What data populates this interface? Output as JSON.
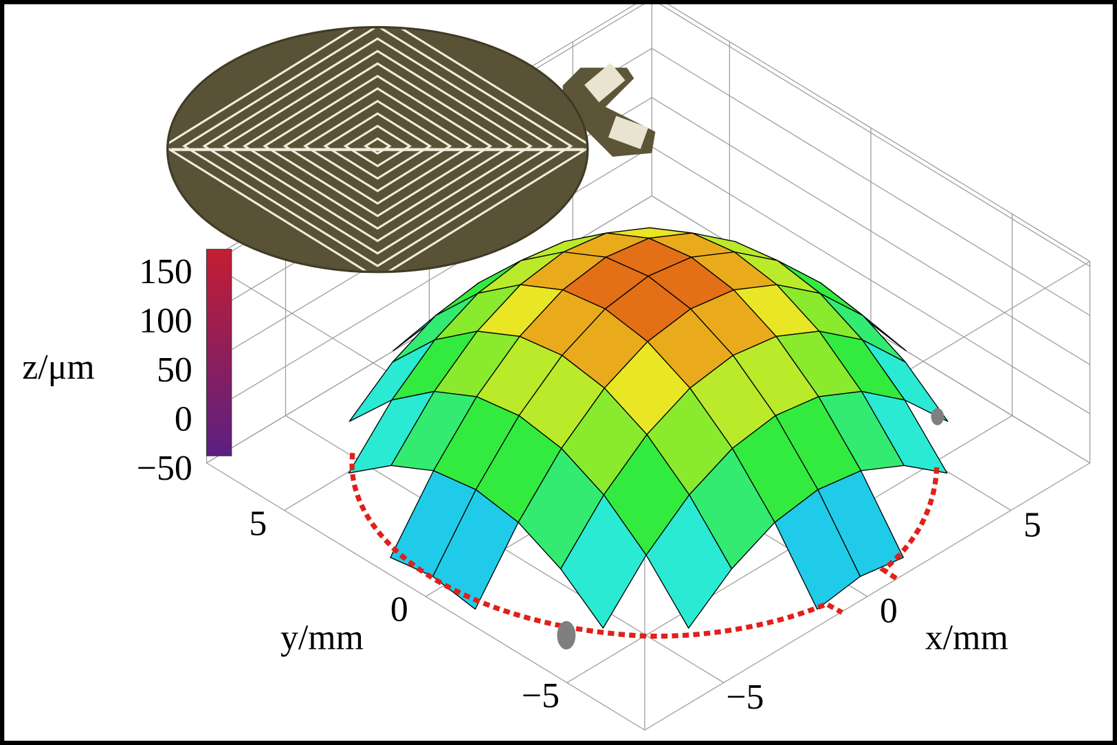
{
  "chart_data": {
    "type": "surface",
    "x": [
      -7.5,
      -6,
      -4.5,
      -3,
      -1.5,
      0,
      1.5,
      3,
      4.5,
      6,
      7.5
    ],
    "y": [
      -7.5,
      -6,
      -4.5,
      -3,
      -1.5,
      0,
      1.5,
      3,
      4.5,
      6,
      7.5
    ],
    "z": [
      [
        null,
        null,
        null,
        null,
        -41,
        -34,
        -41,
        null,
        null,
        null,
        null
      ],
      [
        null,
        null,
        -34,
        0,
        21,
        28,
        21,
        0,
        -34,
        null,
        null
      ],
      [
        null,
        -34,
        14,
        49,
        70,
        77,
        70,
        49,
        14,
        -34,
        null
      ],
      [
        null,
        0,
        49,
        84,
        105,
        112,
        105,
        84,
        49,
        0,
        null
      ],
      [
        -41,
        21,
        70,
        105,
        126,
        133,
        126,
        105,
        70,
        21,
        -41
      ],
      [
        -34,
        28,
        77,
        112,
        133,
        140,
        133,
        112,
        77,
        28,
        -34
      ],
      [
        -41,
        21,
        70,
        105,
        126,
        133,
        126,
        105,
        70,
        21,
        -41
      ],
      [
        null,
        0,
        49,
        84,
        105,
        112,
        105,
        84,
        49,
        0,
        null
      ],
      [
        null,
        -34,
        14,
        49,
        70,
        77,
        70,
        49,
        14,
        -34,
        null
      ],
      [
        null,
        null,
        -34,
        0,
        21,
        28,
        21,
        0,
        -34,
        null,
        null
      ],
      [
        null,
        null,
        null,
        null,
        -41,
        -34,
        -41,
        null,
        null,
        null,
        null
      ]
    ],
    "xlim": [
      -7.75,
      7.75
    ],
    "ylim": [
      -7.75,
      7.75
    ],
    "zlim": [
      -50,
      155
    ],
    "xticks": [
      {
        "value": -5,
        "label": "−5"
      },
      0,
      5
    ],
    "yticks": [
      {
        "value": -5,
        "label": "−5"
      },
      0,
      5
    ],
    "zticks": [
      {
        "value": -50,
        "label": "−50"
      },
      0,
      50,
      100,
      150
    ],
    "x_label": "x/mm",
    "y_label": "y/mm",
    "z_label": "z/μm",
    "colormap": "rainbow",
    "mesh_color": "#000000"
  }
}
